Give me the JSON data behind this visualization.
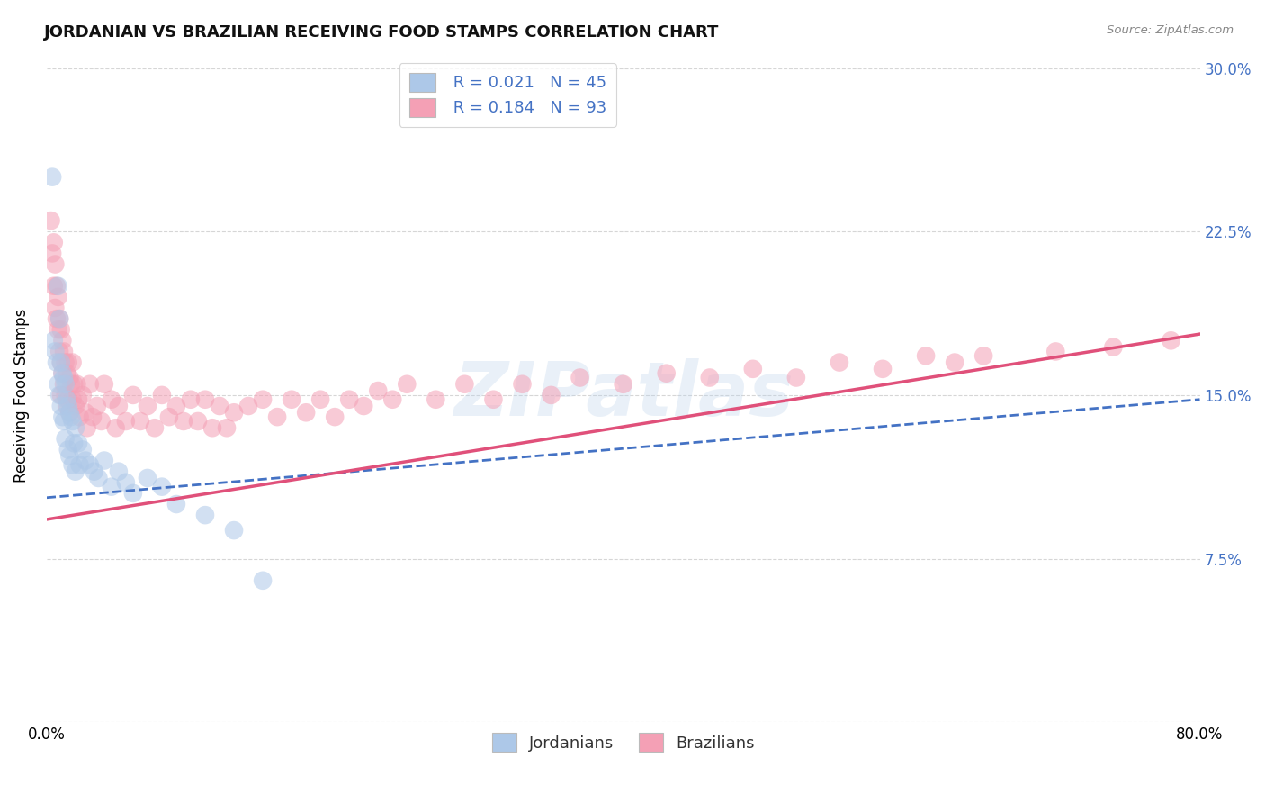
{
  "title": "JORDANIAN VS BRAZILIAN RECEIVING FOOD STAMPS CORRELATION CHART",
  "source": "Source: ZipAtlas.com",
  "ylabel": "Receiving Food Stamps",
  "xlabel": "",
  "xlim": [
    0.0,
    0.8
  ],
  "ylim": [
    0.0,
    0.3
  ],
  "xtick_labels": [
    "0.0%",
    "80.0%"
  ],
  "ytick_labels_right": [
    "",
    "7.5%",
    "15.0%",
    "22.5%",
    "30.0%"
  ],
  "legend_r_jordan": "R = 0.021",
  "legend_n_jordan": "N = 45",
  "legend_r_brazil": "R = 0.184",
  "legend_n_brazil": "N = 93",
  "jordan_color": "#adc8e8",
  "brazil_color": "#f4a0b5",
  "jordan_line_color": "#4472c4",
  "brazil_line_color": "#e0507a",
  "background_color": "#ffffff",
  "grid_color": "#cccccc",
  "watermark": "ZIPatlas",
  "jordan_line": [
    0.0,
    0.103,
    0.8,
    0.148
  ],
  "brazil_line": [
    0.0,
    0.093,
    0.8,
    0.178
  ],
  "jordan_x": [
    0.004,
    0.005,
    0.006,
    0.007,
    0.008,
    0.008,
    0.009,
    0.009,
    0.01,
    0.01,
    0.011,
    0.011,
    0.012,
    0.012,
    0.013,
    0.013,
    0.014,
    0.015,
    0.015,
    0.016,
    0.016,
    0.017,
    0.018,
    0.018,
    0.019,
    0.02,
    0.02,
    0.022,
    0.023,
    0.025,
    0.027,
    0.03,
    0.033,
    0.036,
    0.04,
    0.045,
    0.05,
    0.055,
    0.06,
    0.07,
    0.08,
    0.09,
    0.11,
    0.13,
    0.15
  ],
  "jordan_y": [
    0.25,
    0.175,
    0.17,
    0.165,
    0.2,
    0.155,
    0.185,
    0.15,
    0.165,
    0.145,
    0.16,
    0.14,
    0.158,
    0.138,
    0.155,
    0.13,
    0.148,
    0.145,
    0.125,
    0.142,
    0.122,
    0.14,
    0.138,
    0.118,
    0.128,
    0.135,
    0.115,
    0.128,
    0.118,
    0.125,
    0.12,
    0.118,
    0.115,
    0.112,
    0.12,
    0.108,
    0.115,
    0.11,
    0.105,
    0.112,
    0.108,
    0.1,
    0.095,
    0.088,
    0.065
  ],
  "brazil_x": [
    0.003,
    0.004,
    0.005,
    0.005,
    0.006,
    0.006,
    0.007,
    0.007,
    0.008,
    0.008,
    0.009,
    0.009,
    0.01,
    0.01,
    0.01,
    0.011,
    0.011,
    0.012,
    0.012,
    0.013,
    0.013,
    0.014,
    0.014,
    0.015,
    0.015,
    0.016,
    0.016,
    0.017,
    0.018,
    0.018,
    0.019,
    0.02,
    0.021,
    0.022,
    0.023,
    0.025,
    0.027,
    0.028,
    0.03,
    0.032,
    0.035,
    0.038,
    0.04,
    0.045,
    0.048,
    0.05,
    0.055,
    0.06,
    0.065,
    0.07,
    0.075,
    0.08,
    0.085,
    0.09,
    0.095,
    0.1,
    0.105,
    0.11,
    0.115,
    0.12,
    0.125,
    0.13,
    0.14,
    0.15,
    0.16,
    0.17,
    0.18,
    0.19,
    0.2,
    0.21,
    0.22,
    0.23,
    0.24,
    0.25,
    0.27,
    0.29,
    0.31,
    0.33,
    0.35,
    0.37,
    0.4,
    0.43,
    0.46,
    0.49,
    0.52,
    0.55,
    0.58,
    0.61,
    0.63,
    0.65,
    0.7,
    0.74,
    0.78
  ],
  "brazil_y": [
    0.23,
    0.215,
    0.22,
    0.2,
    0.21,
    0.19,
    0.2,
    0.185,
    0.195,
    0.18,
    0.185,
    0.17,
    0.18,
    0.165,
    0.15,
    0.175,
    0.16,
    0.17,
    0.155,
    0.165,
    0.15,
    0.16,
    0.145,
    0.165,
    0.148,
    0.158,
    0.142,
    0.155,
    0.165,
    0.148,
    0.155,
    0.145,
    0.155,
    0.148,
    0.14,
    0.15,
    0.142,
    0.135,
    0.155,
    0.14,
    0.145,
    0.138,
    0.155,
    0.148,
    0.135,
    0.145,
    0.138,
    0.15,
    0.138,
    0.145,
    0.135,
    0.15,
    0.14,
    0.145,
    0.138,
    0.148,
    0.138,
    0.148,
    0.135,
    0.145,
    0.135,
    0.142,
    0.145,
    0.148,
    0.14,
    0.148,
    0.142,
    0.148,
    0.14,
    0.148,
    0.145,
    0.152,
    0.148,
    0.155,
    0.148,
    0.155,
    0.148,
    0.155,
    0.15,
    0.158,
    0.155,
    0.16,
    0.158,
    0.162,
    0.158,
    0.165,
    0.162,
    0.168,
    0.165,
    0.168,
    0.17,
    0.172,
    0.175
  ]
}
